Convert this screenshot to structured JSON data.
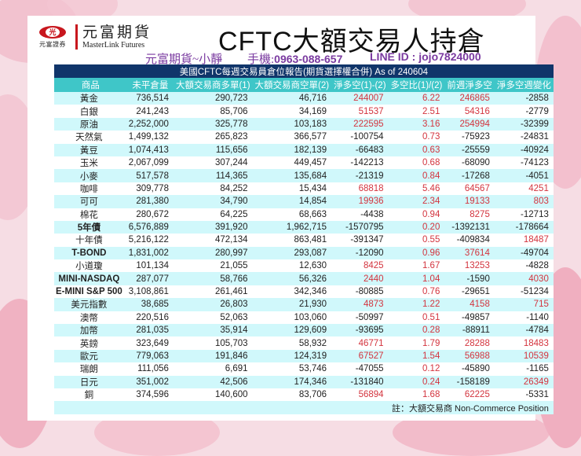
{
  "header": {
    "logo_cn_small": "元富證券",
    "logo_mark": "光",
    "brand_cn": "元富期貨",
    "brand_en": "MasterLink Futures",
    "title": "CFTC大額交易人持倉",
    "contact_name": "元富期貨~小靜",
    "phone_label": "手機:",
    "phone": "0963-088-657",
    "line_label": "LINE ID : ",
    "line_id": "jojo7824000"
  },
  "table": {
    "banner": "美國CFTC每週交易員倉位報告(期貨選擇權合併) As of  240604",
    "columns": [
      "商品",
      "未平倉量",
      "大額交易商多單(1)",
      "大額交易商空單(2)",
      "淨多空(1)-(2)",
      "多空比(1)/(2)",
      "前週淨多空",
      "淨多空週變化"
    ],
    "rows": [
      {
        "name": "黃金",
        "oi": "736,514",
        "long": "290,723",
        "short": "46,716",
        "net": "244007",
        "ratio": "6.22",
        "prev": "246865",
        "chg": "-2858"
      },
      {
        "name": "白銀",
        "oi": "241,243",
        "long": "85,706",
        "short": "34,169",
        "net": "51537",
        "ratio": "2.51",
        "prev": "54316",
        "chg": "-2779"
      },
      {
        "name": "原油",
        "oi": "2,252,000",
        "long": "325,778",
        "short": "103,183",
        "net": "222595",
        "ratio": "3.16",
        "prev": "254994",
        "chg": "-32399"
      },
      {
        "name": "天然氣",
        "oi": "1,499,132",
        "long": "265,823",
        "short": "366,577",
        "net": "-100754",
        "ratio": "0.73",
        "prev": "-75923",
        "chg": "-24831"
      },
      {
        "name": "黃豆",
        "oi": "1,074,413",
        "long": "115,656",
        "short": "182,139",
        "net": "-66483",
        "ratio": "0.63",
        "prev": "-25559",
        "chg": "-40924"
      },
      {
        "name": "玉米",
        "oi": "2,067,099",
        "long": "307,244",
        "short": "449,457",
        "net": "-142213",
        "ratio": "0.68",
        "prev": "-68090",
        "chg": "-74123"
      },
      {
        "name": "小麥",
        "oi": "517,578",
        "long": "114,365",
        "short": "135,684",
        "net": "-21319",
        "ratio": "0.84",
        "prev": "-17268",
        "chg": "-4051"
      },
      {
        "name": "咖啡",
        "oi": "309,778",
        "long": "84,252",
        "short": "15,434",
        "net": "68818",
        "ratio": "5.46",
        "prev": "64567",
        "chg": "4251"
      },
      {
        "name": "可可",
        "oi": "281,380",
        "long": "34,790",
        "short": "14,854",
        "net": "19936",
        "ratio": "2.34",
        "prev": "19133",
        "chg": "803"
      },
      {
        "name": "棉花",
        "oi": "280,672",
        "long": "64,225",
        "short": "68,663",
        "net": "-4438",
        "ratio": "0.94",
        "prev": "8275",
        "chg": "-12713"
      },
      {
        "name": "5年債",
        "oi": "6,576,889",
        "long": "391,920",
        "short": "1,962,715",
        "net": "-1570795",
        "ratio": "0.20",
        "prev": "-1392131",
        "chg": "-178664",
        "bold": true
      },
      {
        "name": "十年債",
        "oi": "5,216,122",
        "long": "472,134",
        "short": "863,481",
        "net": "-391347",
        "ratio": "0.55",
        "prev": "-409834",
        "chg": "18487"
      },
      {
        "name": "T-BOND",
        "oi": "1,831,002",
        "long": "280,997",
        "short": "293,087",
        "net": "-12090",
        "ratio": "0.96",
        "prev": "37614",
        "chg": "-49704",
        "bold": true
      },
      {
        "name": "小道瓊",
        "oi": "101,134",
        "long": "21,055",
        "short": "12,630",
        "net": "8425",
        "ratio": "1.67",
        "prev": "13253",
        "chg": "-4828"
      },
      {
        "name": "MINI-NASDAQ",
        "oi": "287,077",
        "long": "58,766",
        "short": "56,326",
        "net": "2440",
        "ratio": "1.04",
        "prev": "-1590",
        "chg": "4030",
        "bold": true
      },
      {
        "name": "E-MINI S&P 500",
        "oi": "3,108,861",
        "long": "261,461",
        "short": "342,346",
        "net": "-80885",
        "ratio": "0.76",
        "prev": "-29651",
        "chg": "-51234",
        "bold": true
      },
      {
        "name": "美元指數",
        "oi": "38,685",
        "long": "26,803",
        "short": "21,930",
        "net": "4873",
        "ratio": "1.22",
        "prev": "4158",
        "chg": "715"
      },
      {
        "name": "澳幣",
        "oi": "220,516",
        "long": "52,063",
        "short": "103,060",
        "net": "-50997",
        "ratio": "0.51",
        "prev": "-49857",
        "chg": "-1140"
      },
      {
        "name": "加幣",
        "oi": "281,035",
        "long": "35,914",
        "short": "129,609",
        "net": "-93695",
        "ratio": "0.28",
        "prev": "-88911",
        "chg": "-4784"
      },
      {
        "name": "英鎊",
        "oi": "323,649",
        "long": "105,703",
        "short": "58,932",
        "net": "46771",
        "ratio": "1.79",
        "prev": "28288",
        "chg": "18483"
      },
      {
        "name": "歐元",
        "oi": "779,063",
        "long": "191,846",
        "short": "124,319",
        "net": "67527",
        "ratio": "1.54",
        "prev": "56988",
        "chg": "10539"
      },
      {
        "name": "瑞朗",
        "oi": "111,056",
        "long": "6,691",
        "short": "53,746",
        "net": "-47055",
        "ratio": "0.12",
        "prev": "-45890",
        "chg": "-1165"
      },
      {
        "name": "日元",
        "oi": "351,002",
        "long": "42,506",
        "short": "174,346",
        "net": "-131840",
        "ratio": "0.24",
        "prev": "-158189",
        "chg": "26349"
      },
      {
        "name": "銅",
        "oi": "374,596",
        "long": "140,600",
        "short": "83,706",
        "net": "56894",
        "ratio": "1.68",
        "prev": "62225",
        "chg": "-5331"
      }
    ],
    "note": "註：大額交易商 Non-Commerce Position"
  },
  "colors": {
    "banner": "#10356a",
    "header": "#3fc6c8",
    "row_alt": "#d0f8fb",
    "positive": "#d3343e",
    "contact": "#7a3aa0",
    "logo_red": "#c8171e"
  }
}
